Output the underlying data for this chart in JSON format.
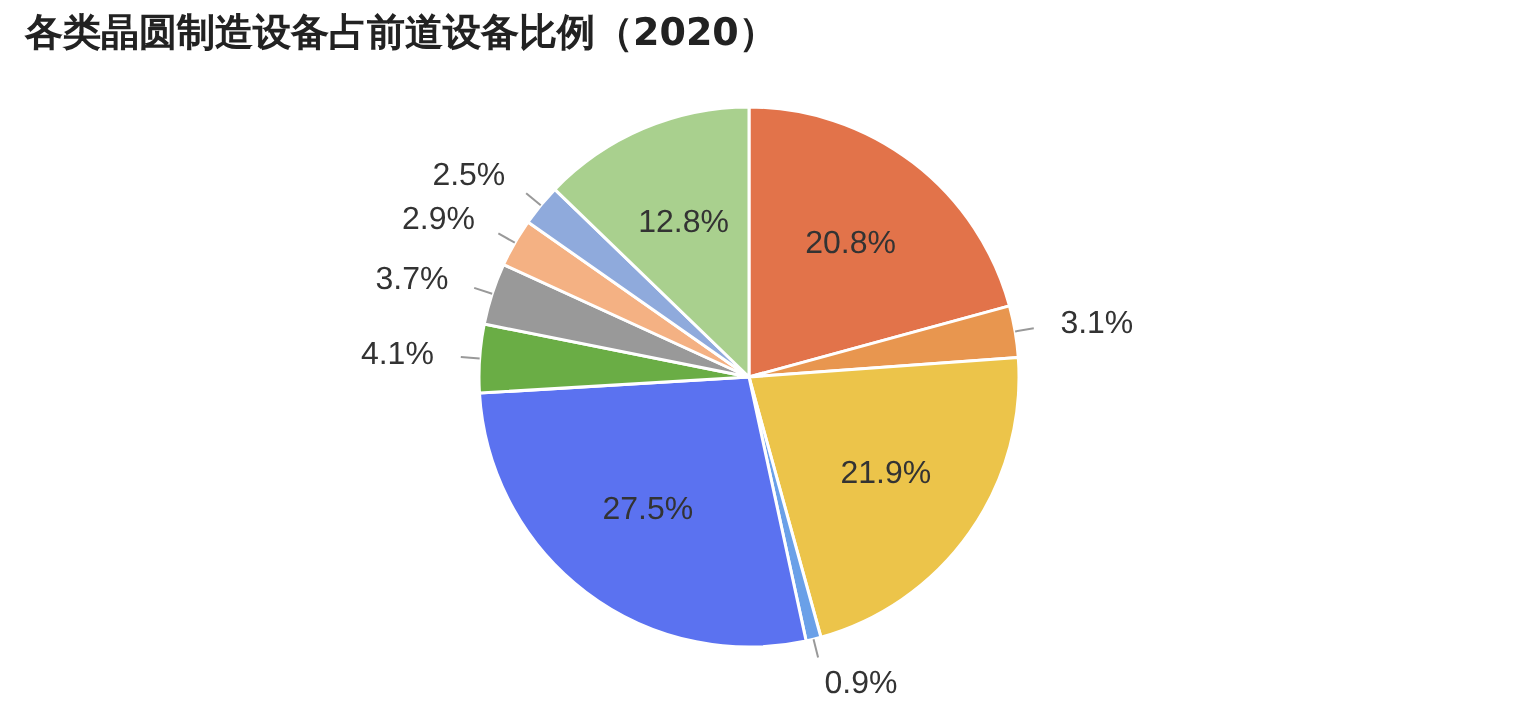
{
  "chart_data": {
    "type": "pie",
    "title": "各类晶圆制造设备占前道设备比例（2020）",
    "categories": [
      null,
      null,
      null,
      null,
      null,
      null,
      null,
      null,
      null,
      null
    ],
    "values": [
      20.8,
      3.1,
      21.9,
      0.9,
      27.5,
      4.1,
      3.7,
      2.9,
      2.5,
      12.8
    ],
    "colors": [
      "#e2734a",
      "#e8964f",
      "#ecc44a",
      "#6aa0e8",
      "#5b72f0",
      "#6aad45",
      "#999999",
      "#f4b183",
      "#8faadc",
      "#a9d08e"
    ],
    "value_labels": [
      "20.8%",
      "3.1%",
      "21.9%",
      "0.9%",
      "27.5%",
      "4.1%",
      "3.7%",
      "2.9%",
      "2.5%",
      "12.8%"
    ]
  }
}
